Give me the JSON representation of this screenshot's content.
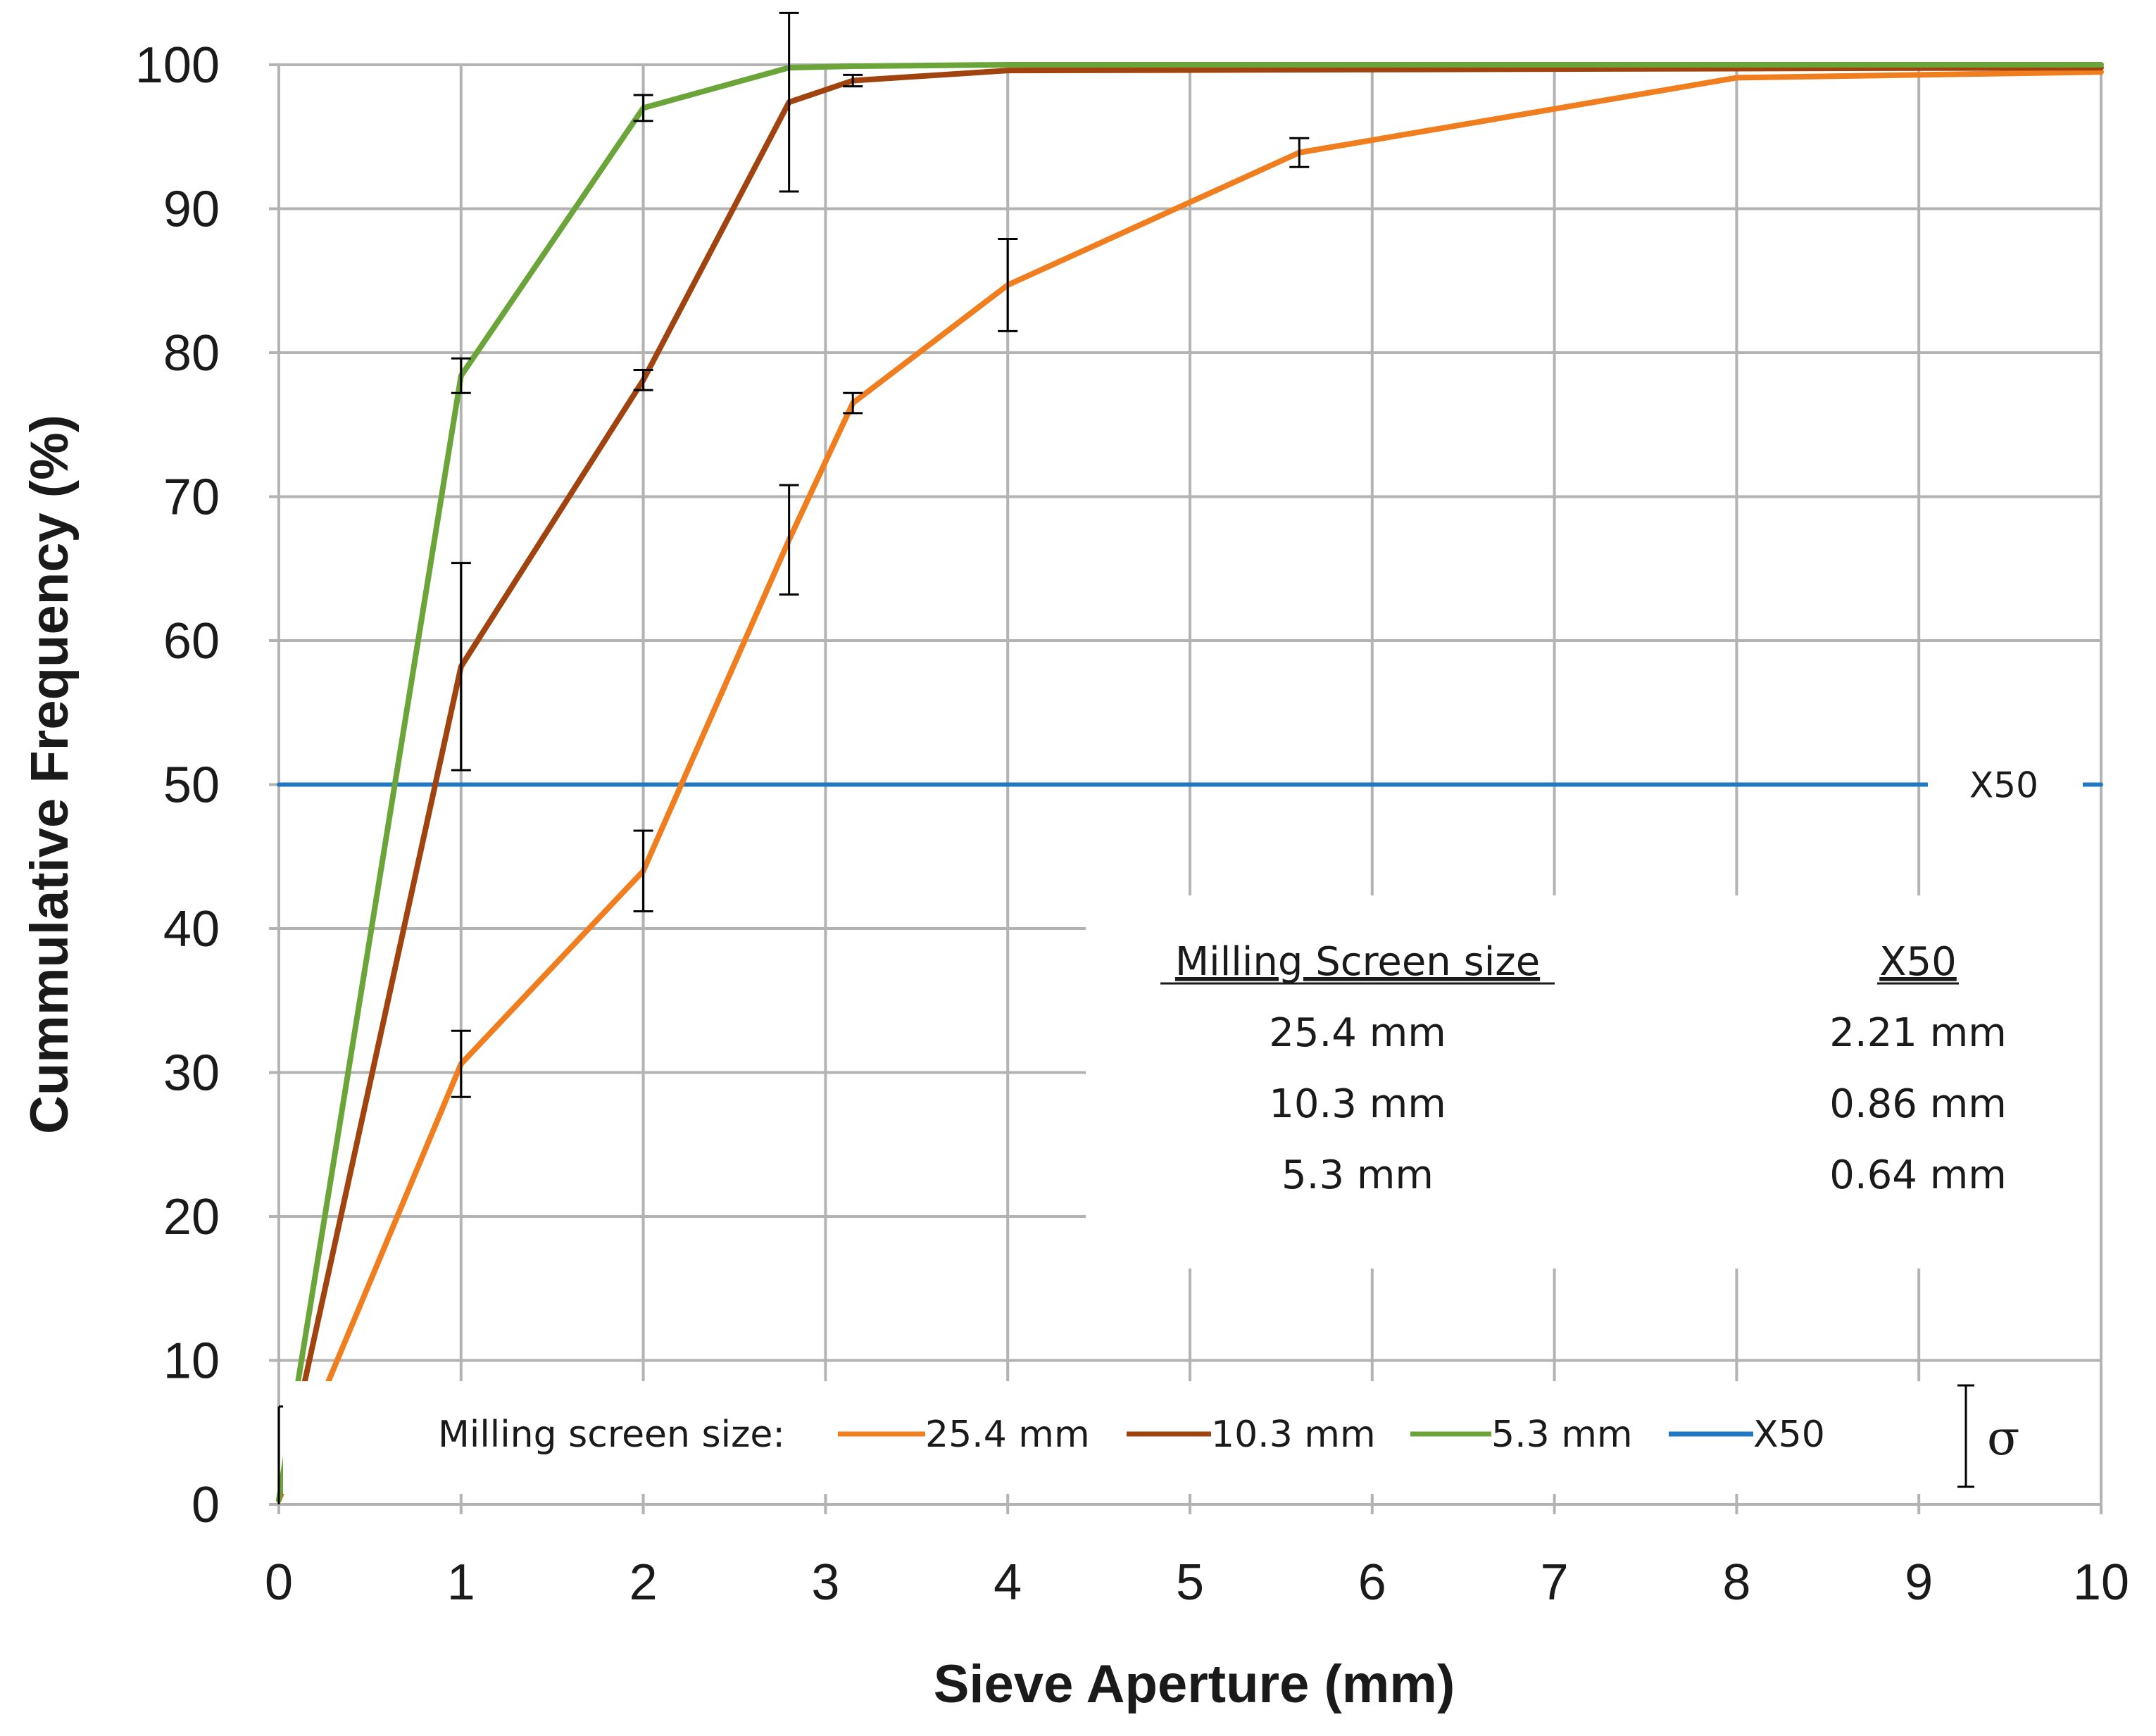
{
  "chart_data": {
    "type": "line",
    "title": "",
    "xlabel": "Sieve Aperture (mm)",
    "ylabel": "Cummulative Frequency (%)",
    "xlim": [
      0,
      10
    ],
    "ylim": [
      0,
      100
    ],
    "x_ticks": [
      "0",
      "1",
      "2",
      "3",
      "4",
      "5",
      "6",
      "7",
      "8",
      "9",
      "10"
    ],
    "y_ticks": [
      "0",
      "10",
      "20",
      "30",
      "40",
      "50",
      "60",
      "70",
      "80",
      "90",
      "100"
    ],
    "grid": true,
    "series": [
      {
        "name": "25.4 mm",
        "color": "#f07d1e",
        "x": [
          0,
          1,
          2,
          2.8,
          3.15,
          4,
          5.6,
          8,
          10
        ],
        "y": [
          0.3,
          30.6,
          44,
          67,
          76.5,
          84.7,
          93.9,
          99.1,
          99.5
        ],
        "err": [
          0,
          2.3,
          2.8,
          3.8,
          0.7,
          3.2,
          1.0,
          0,
          0
        ]
      },
      {
        "name": "10.3 mm",
        "color": "#a0430e",
        "x": [
          0,
          1,
          2,
          2.8,
          3.15,
          4,
          10
        ],
        "y": [
          0.3,
          58.2,
          78.1,
          97.4,
          98.9,
          99.6,
          99.8
        ],
        "err": [
          0,
          7.2,
          0.7,
          6.2,
          0.4,
          0,
          0
        ]
      },
      {
        "name": "5.3 mm",
        "color": "#6ba539",
        "x": [
          0,
          1,
          2,
          2.8,
          3.15,
          4,
          10
        ],
        "y": [
          0.3,
          78.4,
          97,
          99.8,
          99.9,
          100,
          100
        ],
        "err": [
          0,
          1.2,
          0.9,
          0,
          0,
          0,
          0
        ]
      },
      {
        "name": "X50",
        "color": "#1f78c1",
        "x": [
          0,
          10
        ],
        "y": [
          50,
          50
        ],
        "err": [
          0,
          0
        ]
      }
    ],
    "legend": {
      "title": "Milling screen size:",
      "placement": "bottom",
      "entries": [
        "25.4 mm",
        "10.3 mm",
        "5.3 mm",
        "X50"
      ],
      "sigma_label": "σ"
    },
    "annotations": {
      "x50_line_label": "X50",
      "origin_error_bar": [
        0,
        6.8
      ]
    },
    "x50_table": {
      "headers": [
        "Milling Screen size",
        "X50"
      ],
      "rows": [
        [
          "25.4 mm",
          "2.21 mm"
        ],
        [
          "10.3 mm",
          "0.86 mm"
        ],
        [
          "5.3 mm",
          "0.64 mm"
        ]
      ]
    },
    "colors": {
      "grid": "#b3b3b3",
      "error_bar": "#000000",
      "text": "#1a1a1a"
    }
  }
}
